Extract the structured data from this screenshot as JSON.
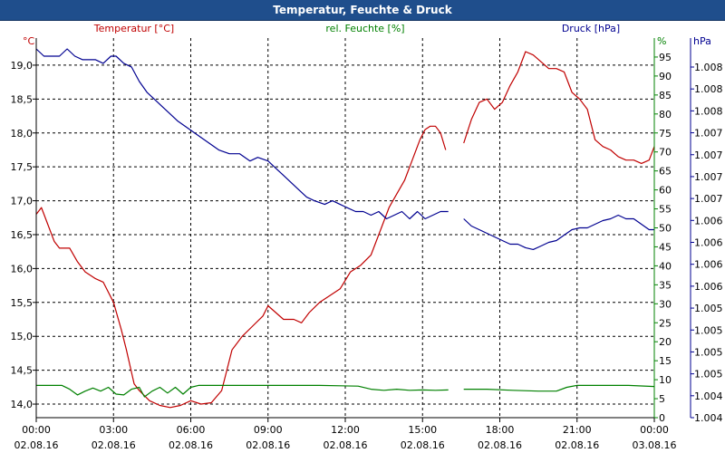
{
  "window": {
    "title": "Temperatur, Feuchte & Druck"
  },
  "chart_data": {
    "type": "line",
    "title": "Temperatur, Feuchte & Druck",
    "colors": {
      "temperature": "#c00000",
      "humidity": "#008000",
      "pressure": "#000090",
      "grid": "#000000"
    },
    "axes": {
      "temperature": {
        "label": "Temperatur [°C]",
        "unit": "°C",
        "ylim": [
          13.8,
          19.4
        ],
        "tick_labels": [
          "14,0",
          "14,5",
          "15,0",
          "15,5",
          "16,0",
          "16,5",
          "17,0",
          "17,5",
          "18,0",
          "18,5",
          "19,0"
        ]
      },
      "humidity": {
        "label": "rel. Feuchte [%]",
        "unit": "%",
        "ylim": [
          0,
          100
        ],
        "tick_labels": [
          "0",
          "5",
          "10",
          "15",
          "20",
          "25",
          "30",
          "35",
          "40",
          "45",
          "50",
          "55",
          "60",
          "65",
          "70",
          "75",
          "80",
          "85",
          "90",
          "95"
        ]
      },
      "pressure": {
        "label": "Druck [hPa]",
        "unit": "hPa",
        "ylim": [
          1004.0,
          1008.2
        ],
        "tick_labels": [
          "1.004",
          "1.004",
          "1.005",
          "1.005",
          "1.005",
          "1.005",
          "1.006",
          "1.006",
          "1.006",
          "1.006",
          "1.007",
          "1.007",
          "1.007",
          "1.007",
          "1.008",
          "1.008",
          "1.008"
        ]
      }
    },
    "x": {
      "range_hours": [
        0,
        24
      ],
      "ticks": [
        {
          "time": "00:00",
          "date": "02.08.16"
        },
        {
          "time": "03:00",
          "date": "02.08.16"
        },
        {
          "time": "06:00",
          "date": "02.08.16"
        },
        {
          "time": "09:00",
          "date": "02.08.16"
        },
        {
          "time": "12:00",
          "date": "02.08.16"
        },
        {
          "time": "15:00",
          "date": "02.08.16"
        },
        {
          "time": "18:00",
          "date": "02.08.16"
        },
        {
          "time": "21:00",
          "date": "02.08.16"
        },
        {
          "time": "00:00",
          "date": "03.08.16"
        }
      ]
    },
    "series": [
      {
        "name": "Temperatur",
        "axis": "temperature",
        "segments": [
          [
            [
              0,
              16.8
            ],
            [
              0.2,
              16.9
            ],
            [
              0.5,
              16.6
            ],
            [
              0.7,
              16.4
            ],
            [
              0.9,
              16.3
            ],
            [
              1.3,
              16.3
            ],
            [
              1.6,
              16.1
            ],
            [
              1.9,
              15.95
            ],
            [
              2.3,
              15.85
            ],
            [
              2.6,
              15.8
            ],
            [
              3.0,
              15.5
            ],
            [
              3.3,
              15.1
            ],
            [
              3.5,
              14.8
            ],
            [
              3.8,
              14.3
            ],
            [
              4.0,
              14.2
            ],
            [
              4.4,
              14.05
            ],
            [
              4.8,
              13.98
            ],
            [
              5.2,
              13.95
            ],
            [
              5.6,
              13.98
            ],
            [
              6.0,
              14.05
            ],
            [
              6.4,
              14.0
            ],
            [
              6.8,
              14.02
            ],
            [
              7.2,
              14.2
            ],
            [
              7.6,
              14.8
            ],
            [
              8.0,
              15.0
            ],
            [
              8.4,
              15.15
            ],
            [
              8.8,
              15.3
            ],
            [
              9.0,
              15.45
            ],
            [
              9.3,
              15.35
            ],
            [
              9.6,
              15.25
            ],
            [
              10.0,
              15.25
            ],
            [
              10.3,
              15.2
            ],
            [
              10.6,
              15.35
            ],
            [
              11.0,
              15.5
            ],
            [
              11.4,
              15.6
            ],
            [
              11.8,
              15.7
            ],
            [
              12.2,
              15.95
            ],
            [
              12.6,
              16.05
            ],
            [
              13.0,
              16.2
            ],
            [
              13.4,
              16.6
            ],
            [
              13.7,
              16.9
            ],
            [
              14.0,
              17.1
            ],
            [
              14.3,
              17.3
            ],
            [
              14.6,
              17.6
            ],
            [
              14.9,
              17.9
            ],
            [
              15.1,
              18.05
            ],
            [
              15.3,
              18.1
            ],
            [
              15.5,
              18.1
            ],
            [
              15.7,
              18.0
            ],
            [
              15.9,
              17.75
            ]
          ],
          [
            [
              16.6,
              17.85
            ],
            [
              16.9,
              18.2
            ],
            [
              17.2,
              18.45
            ],
            [
              17.5,
              18.5
            ],
            [
              17.8,
              18.35
            ],
            [
              18.1,
              18.45
            ],
            [
              18.4,
              18.7
            ],
            [
              18.7,
              18.9
            ],
            [
              19.0,
              19.2
            ],
            [
              19.3,
              19.15
            ],
            [
              19.6,
              19.05
            ],
            [
              19.9,
              18.95
            ],
            [
              20.2,
              18.95
            ],
            [
              20.5,
              18.9
            ],
            [
              20.8,
              18.6
            ],
            [
              21.1,
              18.5
            ],
            [
              21.4,
              18.35
            ],
            [
              21.7,
              17.9
            ],
            [
              22.0,
              17.8
            ],
            [
              22.3,
              17.75
            ],
            [
              22.6,
              17.65
            ],
            [
              22.9,
              17.6
            ],
            [
              23.2,
              17.6
            ],
            [
              23.5,
              17.55
            ],
            [
              23.8,
              17.6
            ],
            [
              24.0,
              17.8
            ]
          ]
        ]
      },
      {
        "name": "rel. Feuchte",
        "axis": "humidity",
        "segments": [
          [
            [
              0,
              8.5
            ],
            [
              1.0,
              8.5
            ],
            [
              1.3,
              7.5
            ],
            [
              1.6,
              6.0
            ],
            [
              1.9,
              7.0
            ],
            [
              2.2,
              7.8
            ],
            [
              2.5,
              7.0
            ],
            [
              2.8,
              8.0
            ],
            [
              3.1,
              6.2
            ],
            [
              3.4,
              6.0
            ],
            [
              3.7,
              7.5
            ],
            [
              4.0,
              8.0
            ],
            [
              4.2,
              5.5
            ],
            [
              4.5,
              7.0
            ],
            [
              4.8,
              8.0
            ],
            [
              5.1,
              6.5
            ],
            [
              5.4,
              8.0
            ],
            [
              5.7,
              6.2
            ],
            [
              6.0,
              8.0
            ],
            [
              6.3,
              8.5
            ],
            [
              7.0,
              8.5
            ],
            [
              9.0,
              8.5
            ],
            [
              11.0,
              8.5
            ],
            [
              12.5,
              8.3
            ],
            [
              13.0,
              7.5
            ],
            [
              13.5,
              7.2
            ],
            [
              14.0,
              7.5
            ],
            [
              14.5,
              7.2
            ],
            [
              15.0,
              7.3
            ],
            [
              15.5,
              7.2
            ],
            [
              16.0,
              7.3
            ]
          ],
          [
            [
              16.6,
              7.5
            ],
            [
              17.5,
              7.5
            ],
            [
              18.5,
              7.2
            ],
            [
              19.5,
              7.0
            ],
            [
              20.2,
              7.0
            ],
            [
              20.6,
              8.0
            ],
            [
              21.0,
              8.5
            ],
            [
              22.0,
              8.5
            ],
            [
              23.0,
              8.5
            ],
            [
              24.0,
              8.2
            ]
          ]
        ]
      },
      {
        "name": "Druck",
        "axis": "pressure",
        "segments": [
          [
            [
              0,
              1008.08
            ],
            [
              0.3,
              1008.0
            ],
            [
              0.9,
              1008.0
            ],
            [
              1.2,
              1008.08
            ],
            [
              1.5,
              1008.0
            ],
            [
              1.8,
              1007.96
            ],
            [
              2.3,
              1007.96
            ],
            [
              2.6,
              1007.92
            ],
            [
              2.9,
              1008.0
            ],
            [
              3.1,
              1008.0
            ],
            [
              3.4,
              1007.92
            ],
            [
              3.7,
              1007.88
            ],
            [
              4.0,
              1007.72
            ],
            [
              4.3,
              1007.6
            ],
            [
              4.6,
              1007.52
            ],
            [
              4.9,
              1007.44
            ],
            [
              5.2,
              1007.36
            ],
            [
              5.5,
              1007.28
            ],
            [
              5.9,
              1007.2
            ],
            [
              6.3,
              1007.12
            ],
            [
              6.7,
              1007.04
            ],
            [
              7.1,
              1006.96
            ],
            [
              7.5,
              1006.92
            ],
            [
              7.9,
              1006.92
            ],
            [
              8.3,
              1006.84
            ],
            [
              8.6,
              1006.88
            ],
            [
              9.0,
              1006.84
            ],
            [
              9.3,
              1006.76
            ],
            [
              9.6,
              1006.68
            ],
            [
              9.9,
              1006.6
            ],
            [
              10.2,
              1006.52
            ],
            [
              10.5,
              1006.44
            ],
            [
              10.8,
              1006.4
            ],
            [
              11.2,
              1006.36
            ],
            [
              11.5,
              1006.4
            ],
            [
              11.8,
              1006.36
            ],
            [
              12.1,
              1006.32
            ],
            [
              12.4,
              1006.28
            ],
            [
              12.7,
              1006.28
            ],
            [
              13.0,
              1006.24
            ],
            [
              13.3,
              1006.28
            ],
            [
              13.6,
              1006.2
            ],
            [
              13.9,
              1006.24
            ],
            [
              14.2,
              1006.28
            ],
            [
              14.5,
              1006.2
            ],
            [
              14.8,
              1006.28
            ],
            [
              15.1,
              1006.2
            ],
            [
              15.4,
              1006.24
            ],
            [
              15.7,
              1006.28
            ],
            [
              16.0,
              1006.28
            ]
          ],
          [
            [
              16.6,
              1006.2
            ],
            [
              16.9,
              1006.12
            ],
            [
              17.2,
              1006.08
            ],
            [
              17.5,
              1006.04
            ],
            [
              17.8,
              1006.0
            ],
            [
              18.1,
              1005.96
            ],
            [
              18.4,
              1005.92
            ],
            [
              18.7,
              1005.92
            ],
            [
              19.0,
              1005.88
            ],
            [
              19.3,
              1005.86
            ],
            [
              19.6,
              1005.9
            ],
            [
              19.9,
              1005.94
            ],
            [
              20.2,
              1005.96
            ],
            [
              20.5,
              1006.02
            ],
            [
              20.8,
              1006.08
            ],
            [
              21.1,
              1006.1
            ],
            [
              21.4,
              1006.1
            ],
            [
              21.7,
              1006.14
            ],
            [
              22.0,
              1006.18
            ],
            [
              22.3,
              1006.2
            ],
            [
              22.6,
              1006.24
            ],
            [
              22.9,
              1006.2
            ],
            [
              23.2,
              1006.2
            ],
            [
              23.5,
              1006.14
            ],
            [
              23.8,
              1006.08
            ],
            [
              24.0,
              1006.08
            ]
          ]
        ]
      }
    ]
  }
}
